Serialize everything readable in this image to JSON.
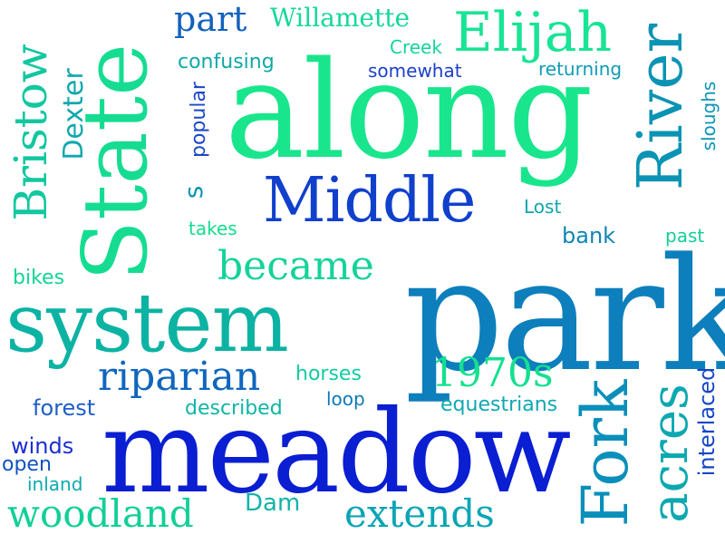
{
  "colors": {
    "background": "#ffffff",
    "green": "#19e68c",
    "mint": "#0fdc8f",
    "teal": "#15b4a0",
    "cyan": "#0aa0b4",
    "steel": "#0e78b4",
    "blue": "#1450c8",
    "navy": "#0a1ed2"
  },
  "words": [
    {
      "text": "along",
      "color": "#19e68c",
      "rotate": 0
    },
    {
      "text": "park",
      "color": "#0d7fbc",
      "rotate": 0
    },
    {
      "text": "meadow",
      "color": "#0a1ed2",
      "rotate": 0
    },
    {
      "text": "system",
      "color": "#0cb3a3",
      "rotate": 0
    },
    {
      "text": "State",
      "color": "#16dc92",
      "rotate": -90
    },
    {
      "text": "Middle",
      "color": "#1040cc",
      "rotate": 0
    },
    {
      "text": "River",
      "color": "#0b93b4",
      "rotate": -90
    },
    {
      "text": "Fork",
      "color": "#0a8fbb",
      "rotate": -90
    },
    {
      "text": "acres",
      "color": "#0ca8b0",
      "rotate": -90
    },
    {
      "text": "Elijah",
      "color": "#18e496",
      "rotate": 0
    },
    {
      "text": "Bristow",
      "color": "#12c7a0",
      "rotate": -90
    },
    {
      "text": "became",
      "color": "#14d39a",
      "rotate": 0
    },
    {
      "text": "riparian",
      "color": "#0f66bd",
      "rotate": 0
    },
    {
      "text": "1970s",
      "color": "#15e090",
      "rotate": 0
    },
    {
      "text": "woodland",
      "color": "#12cf98",
      "rotate": 0
    },
    {
      "text": "extends",
      "color": "#0aa5b5",
      "rotate": 0
    },
    {
      "text": "part",
      "color": "#1361be",
      "rotate": 0
    },
    {
      "text": "Willamette",
      "color": "#16d89a",
      "rotate": 0
    },
    {
      "text": "Dexter",
      "color": "#10a8ad",
      "rotate": -90
    },
    {
      "text": "confusing",
      "color": "#10a8a8",
      "rotate": 0
    },
    {
      "text": "somewhat",
      "color": "#1d3fcb",
      "rotate": 0
    },
    {
      "text": "Creek",
      "color": "#12d598",
      "rotate": 0
    },
    {
      "text": "returning",
      "color": "#0e9cb5",
      "rotate": 0
    },
    {
      "text": "popular",
      "color": "#1b48c6",
      "rotate": -90
    },
    {
      "text": "sloughs",
      "color": "#0f96b5",
      "rotate": -90
    },
    {
      "text": "s",
      "color": "#0e95b3",
      "rotate": -90
    },
    {
      "text": "Lost",
      "color": "#0fa5ab",
      "rotate": 0
    },
    {
      "text": "takes",
      "color": "#15dc8e",
      "rotate": 0
    },
    {
      "text": "bank",
      "color": "#0f86b3",
      "rotate": 0
    },
    {
      "text": "past",
      "color": "#13cf98",
      "rotate": 0
    },
    {
      "text": "bikes",
      "color": "#14d498",
      "rotate": 0
    },
    {
      "text": "horses",
      "color": "#11cda0",
      "rotate": 0
    },
    {
      "text": "loop",
      "color": "#0d79b7",
      "rotate": 0
    },
    {
      "text": "forest",
      "color": "#1f5ec8",
      "rotate": 0
    },
    {
      "text": "described",
      "color": "#0fb5a5",
      "rotate": 0
    },
    {
      "text": "equestrians",
      "color": "#10a7b2",
      "rotate": 0
    },
    {
      "text": "interlaced",
      "color": "#1446c6",
      "rotate": -90
    },
    {
      "text": "winds",
      "color": "#1c2ed1",
      "rotate": 0
    },
    {
      "text": "open",
      "color": "#1153c0",
      "rotate": 0
    },
    {
      "text": "inland",
      "color": "#0ea9b0",
      "rotate": 0
    },
    {
      "text": "Dam",
      "color": "#10b4a8",
      "rotate": 0
    }
  ]
}
